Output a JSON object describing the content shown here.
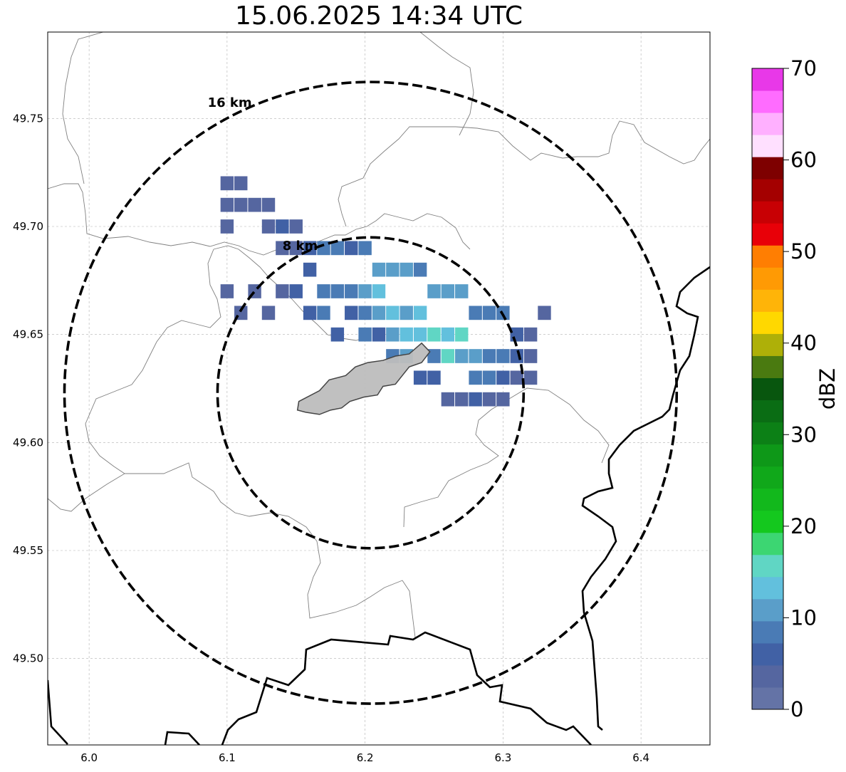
{
  "title": "15.06.2025 14:34 UTC",
  "map": {
    "lon_range": [
      5.97,
      6.45
    ],
    "lat_range": [
      49.46,
      49.79
    ],
    "x_ticks": [
      "6.0",
      "6.1",
      "6.2",
      "6.3",
      "6.4"
    ],
    "y_ticks": [
      "49.50",
      "49.55",
      "49.60",
      "49.65",
      "49.70",
      "49.75"
    ],
    "grid": true,
    "radar_center": {
      "lon": 6.204,
      "lat": 49.623
    },
    "range_rings": [
      {
        "label": "8 km",
        "radius_km": 8
      },
      {
        "label": "16 km",
        "radius_km": 16
      }
    ],
    "city_polygon": {
      "fill": "#bdbdbd",
      "points": [
        [
          6.152,
          49.619
        ],
        [
          6.167,
          49.624
        ],
        [
          6.174,
          49.629
        ],
        [
          6.186,
          49.631
        ],
        [
          6.193,
          49.635
        ],
        [
          6.202,
          49.637
        ],
        [
          6.213,
          49.638
        ],
        [
          6.222,
          49.64
        ],
        [
          6.232,
          49.641
        ],
        [
          6.241,
          49.646
        ],
        [
          6.247,
          49.642
        ],
        [
          6.241,
          49.637
        ],
        [
          6.232,
          49.635
        ],
        [
          6.227,
          49.631
        ],
        [
          6.222,
          49.627
        ],
        [
          6.213,
          49.626
        ],
        [
          6.209,
          49.622
        ],
        [
          6.199,
          49.621
        ],
        [
          6.189,
          49.619
        ],
        [
          6.183,
          49.616
        ],
        [
          6.175,
          49.615
        ],
        [
          6.167,
          49.613
        ],
        [
          6.157,
          49.614
        ],
        [
          6.151,
          49.615
        ]
      ]
    },
    "echo_cells": [
      [
        6.11,
        49.71,
        1
      ],
      [
        6.12,
        49.71,
        1
      ],
      [
        6.13,
        49.7,
        1
      ],
      [
        6.14,
        49.7,
        2
      ],
      [
        6.15,
        49.7,
        1
      ],
      [
        6.16,
        49.69,
        2
      ],
      [
        6.17,
        49.69,
        3
      ],
      [
        6.18,
        49.69,
        3
      ],
      [
        6.19,
        49.69,
        2
      ],
      [
        6.2,
        49.69,
        3
      ],
      [
        6.21,
        49.68,
        4
      ],
      [
        6.22,
        49.68,
        4
      ],
      [
        6.23,
        49.68,
        4
      ],
      [
        6.24,
        49.68,
        3
      ],
      [
        6.25,
        49.67,
        4
      ],
      [
        6.26,
        49.67,
        4
      ],
      [
        6.27,
        49.67,
        4
      ],
      [
        6.28,
        49.66,
        3
      ],
      [
        6.29,
        49.66,
        3
      ],
      [
        6.3,
        49.66,
        3
      ],
      [
        6.31,
        49.65,
        2
      ],
      [
        6.32,
        49.65,
        1
      ],
      [
        6.33,
        49.66,
        1
      ],
      [
        6.16,
        49.68,
        2
      ],
      [
        6.17,
        49.67,
        3
      ],
      [
        6.18,
        49.67,
        3
      ],
      [
        6.19,
        49.67,
        3
      ],
      [
        6.2,
        49.67,
        4
      ],
      [
        6.21,
        49.67,
        5
      ],
      [
        6.22,
        49.66,
        5
      ],
      [
        6.23,
        49.66,
        4
      ],
      [
        6.24,
        49.66,
        5
      ],
      [
        6.25,
        49.65,
        6
      ],
      [
        6.26,
        49.65,
        5
      ],
      [
        6.27,
        49.65,
        6
      ],
      [
        6.28,
        49.64,
        4
      ],
      [
        6.29,
        49.64,
        3
      ],
      [
        6.3,
        49.64,
        3
      ],
      [
        6.31,
        49.64,
        2
      ],
      [
        6.19,
        49.66,
        2
      ],
      [
        6.2,
        49.66,
        3
      ],
      [
        6.21,
        49.66,
        4
      ],
      [
        6.22,
        49.65,
        4
      ],
      [
        6.23,
        49.65,
        5
      ],
      [
        6.24,
        49.65,
        5
      ],
      [
        6.25,
        49.64,
        3
      ],
      [
        6.26,
        49.64,
        6
      ],
      [
        6.27,
        49.64,
        4
      ],
      [
        6.28,
        49.63,
        3
      ],
      [
        6.29,
        49.63,
        3
      ],
      [
        6.3,
        49.63,
        2
      ],
      [
        6.14,
        49.67,
        1
      ],
      [
        6.15,
        49.67,
        2
      ],
      [
        6.13,
        49.66,
        1
      ],
      [
        6.12,
        49.67,
        1
      ],
      [
        6.11,
        49.66,
        1
      ],
      [
        6.1,
        49.67,
        1
      ],
      [
        6.16,
        49.66,
        2
      ],
      [
        6.17,
        49.66,
        3
      ],
      [
        6.18,
        49.65,
        2
      ],
      [
        6.2,
        49.65,
        3
      ],
      [
        6.21,
        49.65,
        2
      ],
      [
        6.22,
        49.64,
        3
      ],
      [
        6.23,
        49.64,
        4
      ],
      [
        6.24,
        49.63,
        2
      ],
      [
        6.25,
        49.63,
        2
      ],
      [
        6.26,
        49.62,
        1
      ],
      [
        6.27,
        49.62,
        1
      ],
      [
        6.28,
        49.62,
        2
      ],
      [
        6.29,
        49.62,
        1
      ],
      [
        6.3,
        49.62,
        1
      ],
      [
        6.32,
        49.64,
        1
      ],
      [
        6.32,
        49.63,
        1
      ],
      [
        6.31,
        49.63,
        1
      ],
      [
        6.15,
        49.69,
        1
      ],
      [
        6.14,
        49.69,
        1
      ],
      [
        6.13,
        49.71,
        1
      ],
      [
        6.1,
        49.7,
        1
      ],
      [
        6.1,
        49.71,
        1
      ],
      [
        6.11,
        49.72,
        1
      ],
      [
        6.1,
        49.72,
        1
      ]
    ],
    "colorbar": {
      "label": "dBZ",
      "min": 0,
      "max": 70,
      "step": 2.5,
      "tick_labels": [
        "0",
        "10",
        "20",
        "30",
        "40",
        "50",
        "60",
        "70"
      ],
      "colors": [
        "#6473a6",
        "#5566a0",
        "#4161a5",
        "#4a7bb5",
        "#5a9ec9",
        "#62c0dd",
        "#60d6c4",
        "#3cd672",
        "#14c81e",
        "#12b81c",
        "#10a81a",
        "#0e9818",
        "#0c8016",
        "#0a6d14",
        "#08560e",
        "#4a7a10",
        "#aeb008",
        "#ffd800",
        "#ffb408",
        "#ff9a04",
        "#ff7e02",
        "#e80008",
        "#c80004",
        "#a40000",
        "#7e0000",
        "#ffe0ff",
        "#ffb0ff",
        "#ff6cff",
        "#e838e8"
      ]
    }
  }
}
